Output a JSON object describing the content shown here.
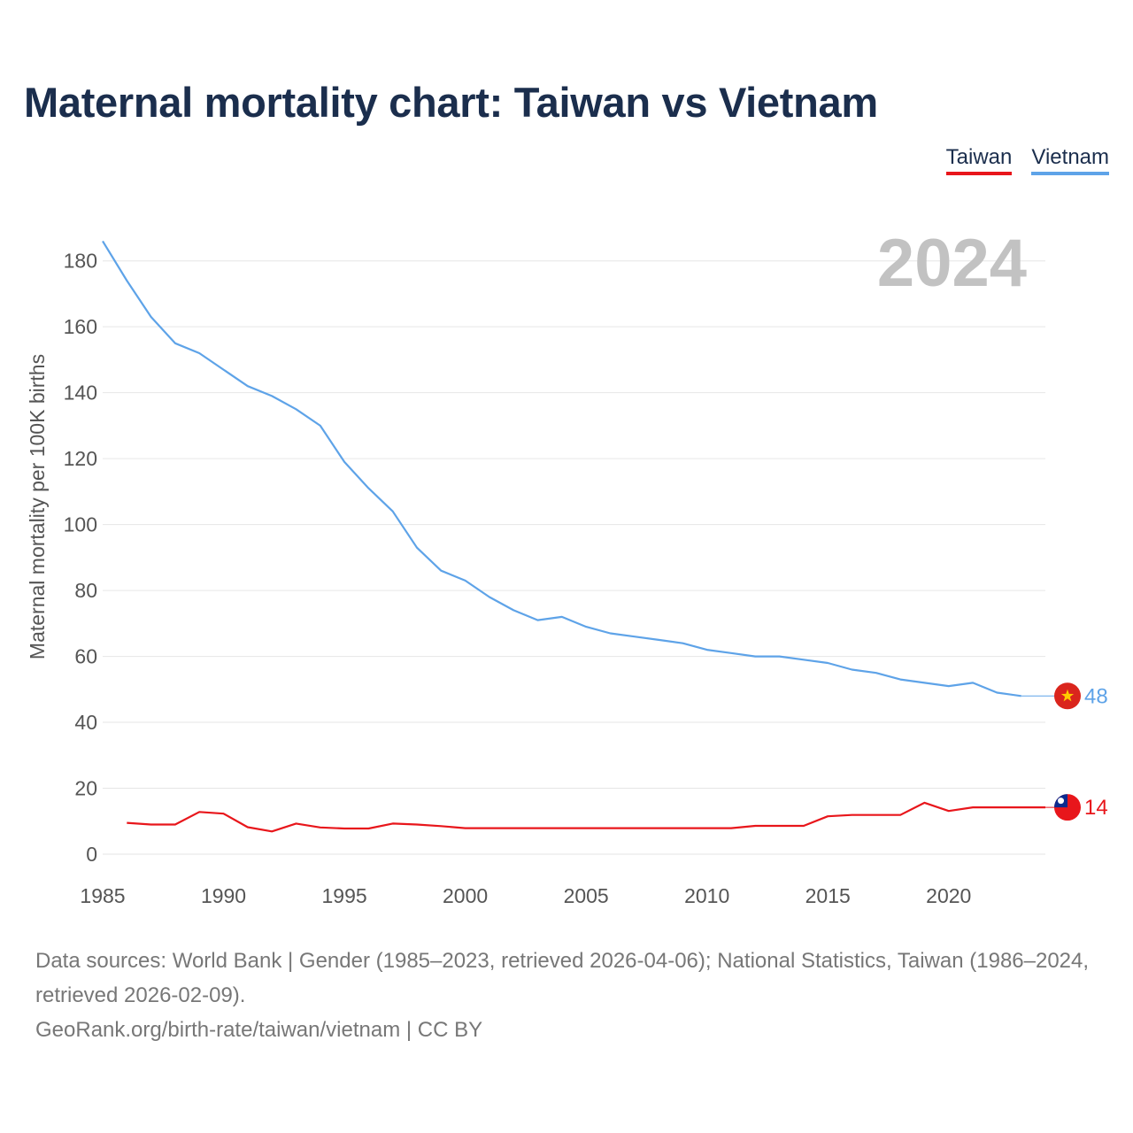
{
  "title": "Maternal mortality chart: Taiwan vs Vietnam",
  "legend": [
    {
      "label": "Taiwan",
      "color": "#e8161b"
    },
    {
      "label": "Vietnam",
      "color": "#5ea3e8"
    }
  ],
  "year_watermark": "2024",
  "footer": {
    "sources": "Data sources: World Bank | Gender (1985–2023, retrieved 2026-04-06); National Statistics, Taiwan (1986–2024, retrieved 2026-02-09).",
    "credit": "GeoRank.org/birth-rate/taiwan/vietnam | CC BY"
  },
  "chart_data": {
    "type": "line",
    "title": "Maternal mortality chart: Taiwan vs Vietnam",
    "xlabel": "",
    "ylabel": "Maternal mortality per 100K births",
    "xlim": [
      1985,
      2024
    ],
    "ylim": [
      0,
      190
    ],
    "x_ticks": [
      1985,
      1990,
      1995,
      2000,
      2005,
      2010,
      2015,
      2020
    ],
    "y_ticks": [
      0,
      20,
      40,
      60,
      80,
      100,
      120,
      140,
      160,
      180
    ],
    "grid": true,
    "legend_position": "top-right",
    "series": [
      {
        "name": "Taiwan",
        "color": "#e8161b",
        "end_label": "14",
        "flag": "taiwan-flag",
        "x": [
          1986,
          1987,
          1988,
          1989,
          1990,
          1991,
          1992,
          1993,
          1994,
          1995,
          1996,
          1997,
          1998,
          1999,
          2000,
          2001,
          2002,
          2003,
          2004,
          2005,
          2006,
          2007,
          2008,
          2009,
          2010,
          2011,
          2012,
          2013,
          2014,
          2015,
          2016,
          2017,
          2018,
          2019,
          2020,
          2021,
          2022,
          2023,
          2024
        ],
        "values": [
          9.5,
          9.0,
          9.0,
          12.8,
          12.3,
          8.2,
          6.9,
          9.3,
          8.1,
          7.8,
          7.8,
          9.3,
          9.0,
          8.5,
          7.9,
          7.9,
          7.9,
          7.9,
          7.9,
          7.9,
          7.9,
          7.9,
          7.9,
          7.9,
          7.9,
          7.9,
          8.6,
          8.6,
          8.6,
          11.5,
          11.9,
          11.9,
          11.9,
          15.6,
          13.1,
          14.2,
          14.2,
          14.2,
          14.2
        ]
      },
      {
        "name": "Vietnam",
        "color": "#5ea3e8",
        "end_label": "48",
        "flag": "vietnam-flag",
        "x": [
          1985,
          1986,
          1987,
          1988,
          1989,
          1990,
          1991,
          1992,
          1993,
          1994,
          1995,
          1996,
          1997,
          1998,
          1999,
          2000,
          2001,
          2002,
          2003,
          2004,
          2005,
          2006,
          2007,
          2008,
          2009,
          2010,
          2011,
          2012,
          2013,
          2014,
          2015,
          2016,
          2017,
          2018,
          2019,
          2020,
          2021,
          2022,
          2023
        ],
        "values": [
          186,
          174,
          163,
          155,
          152,
          147,
          142,
          139,
          135,
          130,
          119,
          111,
          104,
          93,
          86,
          83,
          78,
          74,
          71,
          72,
          69,
          67,
          66,
          65,
          64,
          62,
          61,
          60,
          60,
          59,
          58,
          56,
          55,
          53,
          52,
          51,
          52,
          49,
          48
        ]
      }
    ]
  }
}
